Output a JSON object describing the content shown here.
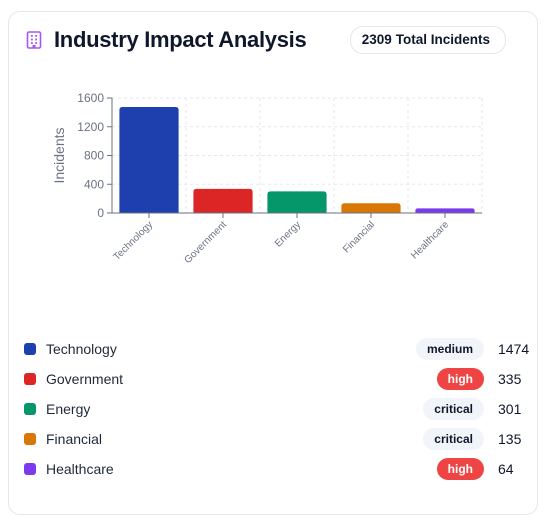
{
  "header": {
    "title": "Industry Impact Analysis",
    "icon": "building-icon",
    "total_count": "2309",
    "total_label": "Total Incidents"
  },
  "chart_data": {
    "type": "bar",
    "categories": [
      "Technology",
      "Government",
      "Energy",
      "Financial",
      "Healthcare"
    ],
    "values": [
      1474,
      335,
      301,
      135,
      64
    ],
    "colors": [
      "#1e40af",
      "#dc2626",
      "#059669",
      "#d97706",
      "#7c3aed"
    ],
    "ylabel": "Incidents",
    "ylim": [
      0,
      1600
    ],
    "yticks": [
      "0",
      "400",
      "800",
      "1200",
      "1600"
    ],
    "grid": true
  },
  "legend": [
    {
      "label": "Technology",
      "color": "#1e40af",
      "severity": "medium",
      "value": "1474"
    },
    {
      "label": "Government",
      "color": "#dc2626",
      "severity": "high",
      "value": "335"
    },
    {
      "label": "Energy",
      "color": "#059669",
      "severity": "critical",
      "value": "301"
    },
    {
      "label": "Financial",
      "color": "#d97706",
      "severity": "critical",
      "value": "135"
    },
    {
      "label": "Healthcare",
      "color": "#7c3aed",
      "severity": "high",
      "value": "64"
    }
  ]
}
